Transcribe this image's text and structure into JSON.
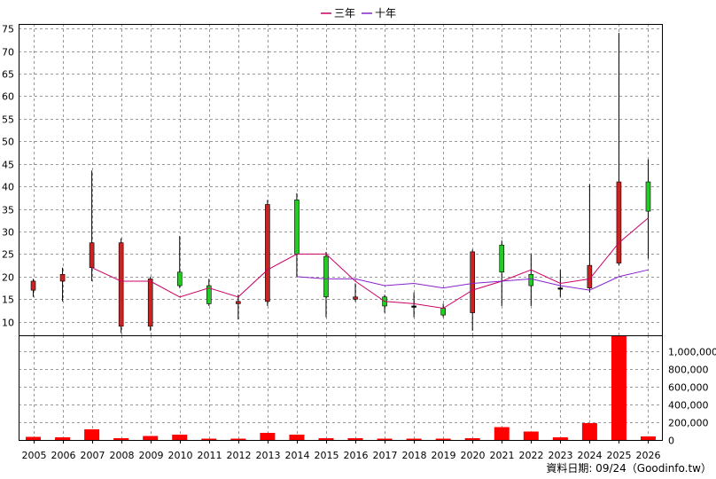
{
  "legend": [
    {
      "name": "三年",
      "color": "#cc0066"
    },
    {
      "name": "十年",
      "color": "#8822cc"
    }
  ],
  "credit": "資料日期: 09/24（Goodinfo.tw）",
  "chart_data": [
    {
      "type": "candlestick",
      "categories": [
        "2005",
        "2006",
        "2007",
        "2008",
        "2009",
        "2010",
        "2011",
        "2012",
        "2013",
        "2014",
        "2015",
        "2016",
        "2017",
        "2018",
        "2019",
        "2020",
        "2021",
        "2022",
        "2023",
        "2024",
        "2025",
        "2026"
      ],
      "ylim": [
        7,
        76
      ],
      "yticks": [
        10,
        15,
        20,
        25,
        30,
        35,
        40,
        45,
        50,
        55,
        60,
        65,
        70,
        75
      ],
      "grid": true,
      "candles": [
        {
          "open": 19.0,
          "close": 17.0,
          "high": 19.5,
          "low": 15.5
        },
        {
          "open": 20.5,
          "close": 19.0,
          "high": 22.0,
          "low": 14.5
        },
        {
          "open": 27.5,
          "close": 22.0,
          "high": 43.5,
          "low": 19.0
        },
        {
          "open": 27.5,
          "close": 9.0,
          "high": 28.5,
          "low": 7.5
        },
        {
          "open": 19.5,
          "close": 9.0,
          "high": 20.0,
          "low": 8.0
        },
        {
          "open": 18.0,
          "close": 21.0,
          "high": 29.0,
          "low": 17.5
        },
        {
          "open": 14.0,
          "close": 18.0,
          "high": 19.5,
          "low": 13.5
        },
        {
          "open": 14.5,
          "close": 14.0,
          "high": 16.0,
          "low": 10.5
        },
        {
          "open": 36.0,
          "close": 14.5,
          "high": 37.0,
          "low": 13.5
        },
        {
          "open": 25.0,
          "close": 37.0,
          "high": 38.5,
          "low": 20.0
        },
        {
          "open": 15.5,
          "close": 24.5,
          "high": 25.5,
          "low": 11.0
        },
        {
          "open": 15.5,
          "close": 15.0,
          "high": 18.5,
          "low": 14.5
        },
        {
          "open": 13.5,
          "close": 15.5,
          "high": 16.0,
          "low": 12.0
        },
        {
          "open": 13.5,
          "close": 13.5,
          "high": 16.5,
          "low": 11.0
        },
        {
          "open": 11.5,
          "close": 13.0,
          "high": 14.0,
          "low": 11.0
        },
        {
          "open": 25.5,
          "close": 12.0,
          "high": 26.0,
          "low": 8.0
        },
        {
          "open": 21.0,
          "close": 27.0,
          "high": 28.0,
          "low": 13.5
        },
        {
          "open": 18.0,
          "close": 20.5,
          "high": 25.0,
          "low": 13.5
        },
        {
          "open": 17.5,
          "close": 17.5,
          "high": 21.5,
          "low": 15.5
        },
        {
          "open": 22.5,
          "close": 17.5,
          "high": 40.5,
          "low": 16.5
        },
        {
          "open": 41.0,
          "close": 23.0,
          "high": 74.0,
          "low": 22.5
        },
        {
          "open": 34.5,
          "close": 41.0,
          "high": 46.0,
          "low": 24.0
        }
      ],
      "series": [
        {
          "name": "三年",
          "color": "#cc0066",
          "values": [
            null,
            null,
            22.0,
            19.0,
            19.0,
            15.5,
            17.5,
            15.5,
            21.5,
            25.0,
            25.0,
            19.0,
            14.5,
            14.0,
            13.0,
            17.0,
            19.0,
            21.5,
            18.5,
            19.5,
            27.5,
            33.0
          ]
        },
        {
          "name": "十年",
          "color": "#8822cc",
          "values": [
            null,
            null,
            null,
            null,
            null,
            null,
            null,
            null,
            null,
            20.0,
            19.5,
            19.5,
            18.0,
            18.5,
            17.5,
            18.5,
            19.0,
            19.5,
            18.0,
            17.0,
            20.0,
            21.5
          ]
        }
      ]
    },
    {
      "type": "bar",
      "categories": [
        "2005",
        "2006",
        "2007",
        "2008",
        "2009",
        "2010",
        "2011",
        "2012",
        "2013",
        "2014",
        "2015",
        "2016",
        "2017",
        "2018",
        "2019",
        "2020",
        "2021",
        "2022",
        "2023",
        "2024",
        "2025",
        "2026"
      ],
      "values": [
        35000,
        30000,
        120000,
        20000,
        45000,
        60000,
        5000,
        5000,
        80000,
        60000,
        20000,
        20000,
        5000,
        5000,
        5000,
        20000,
        145000,
        95000,
        30000,
        190000,
        1180000,
        40000
      ],
      "ylim": [
        0,
        1180000
      ],
      "yticks": [
        0,
        200000,
        400000,
        600000,
        800000,
        1000000
      ],
      "ytick_labels": [
        "0",
        "200,000",
        "400,000",
        "600,000",
        "800,000",
        "1,000,000"
      ],
      "color": "#ff0000",
      "grid": true
    }
  ]
}
